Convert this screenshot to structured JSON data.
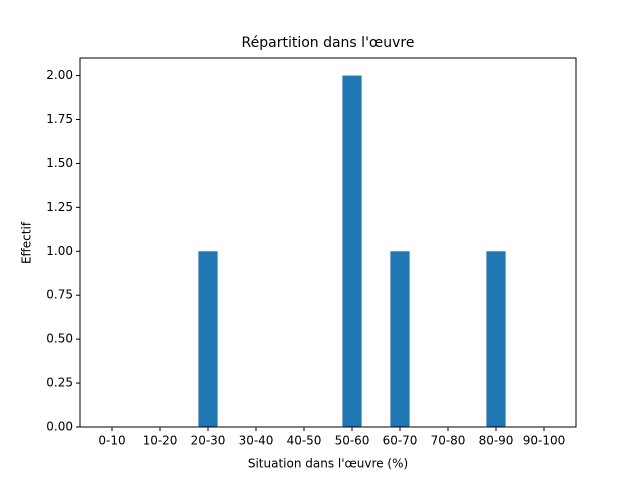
{
  "chart_data": {
    "type": "bar",
    "title": "Répartition dans l'œuvre",
    "x_label": "Situation dans l'œuvre (%)",
    "y_label": "Effectif",
    "categories": [
      "0-10",
      "10-20",
      "20-30",
      "30-40",
      "40-50",
      "50-60",
      "60-70",
      "70-80",
      "80-90",
      "90-100"
    ],
    "values": [
      0,
      0,
      1,
      0,
      0,
      2,
      1,
      0,
      1,
      0
    ],
    "color": "#1f77b4",
    "ylim": [
      0,
      2.1
    ],
    "yticks": [
      {
        "value": 0,
        "label": "0.00"
      },
      {
        "value": 0.25,
        "label": "0.25"
      },
      {
        "value": 0.5,
        "label": "0.50"
      },
      {
        "value": 0.75,
        "label": "0.75"
      },
      {
        "value": 1,
        "label": "1.00"
      },
      {
        "value": 1.25,
        "label": "1.25"
      },
      {
        "value": 1.5,
        "label": "1.50"
      },
      {
        "value": 1.75,
        "label": "1.75"
      },
      {
        "value": 2,
        "label": "2.00"
      }
    ],
    "grid": false
  }
}
